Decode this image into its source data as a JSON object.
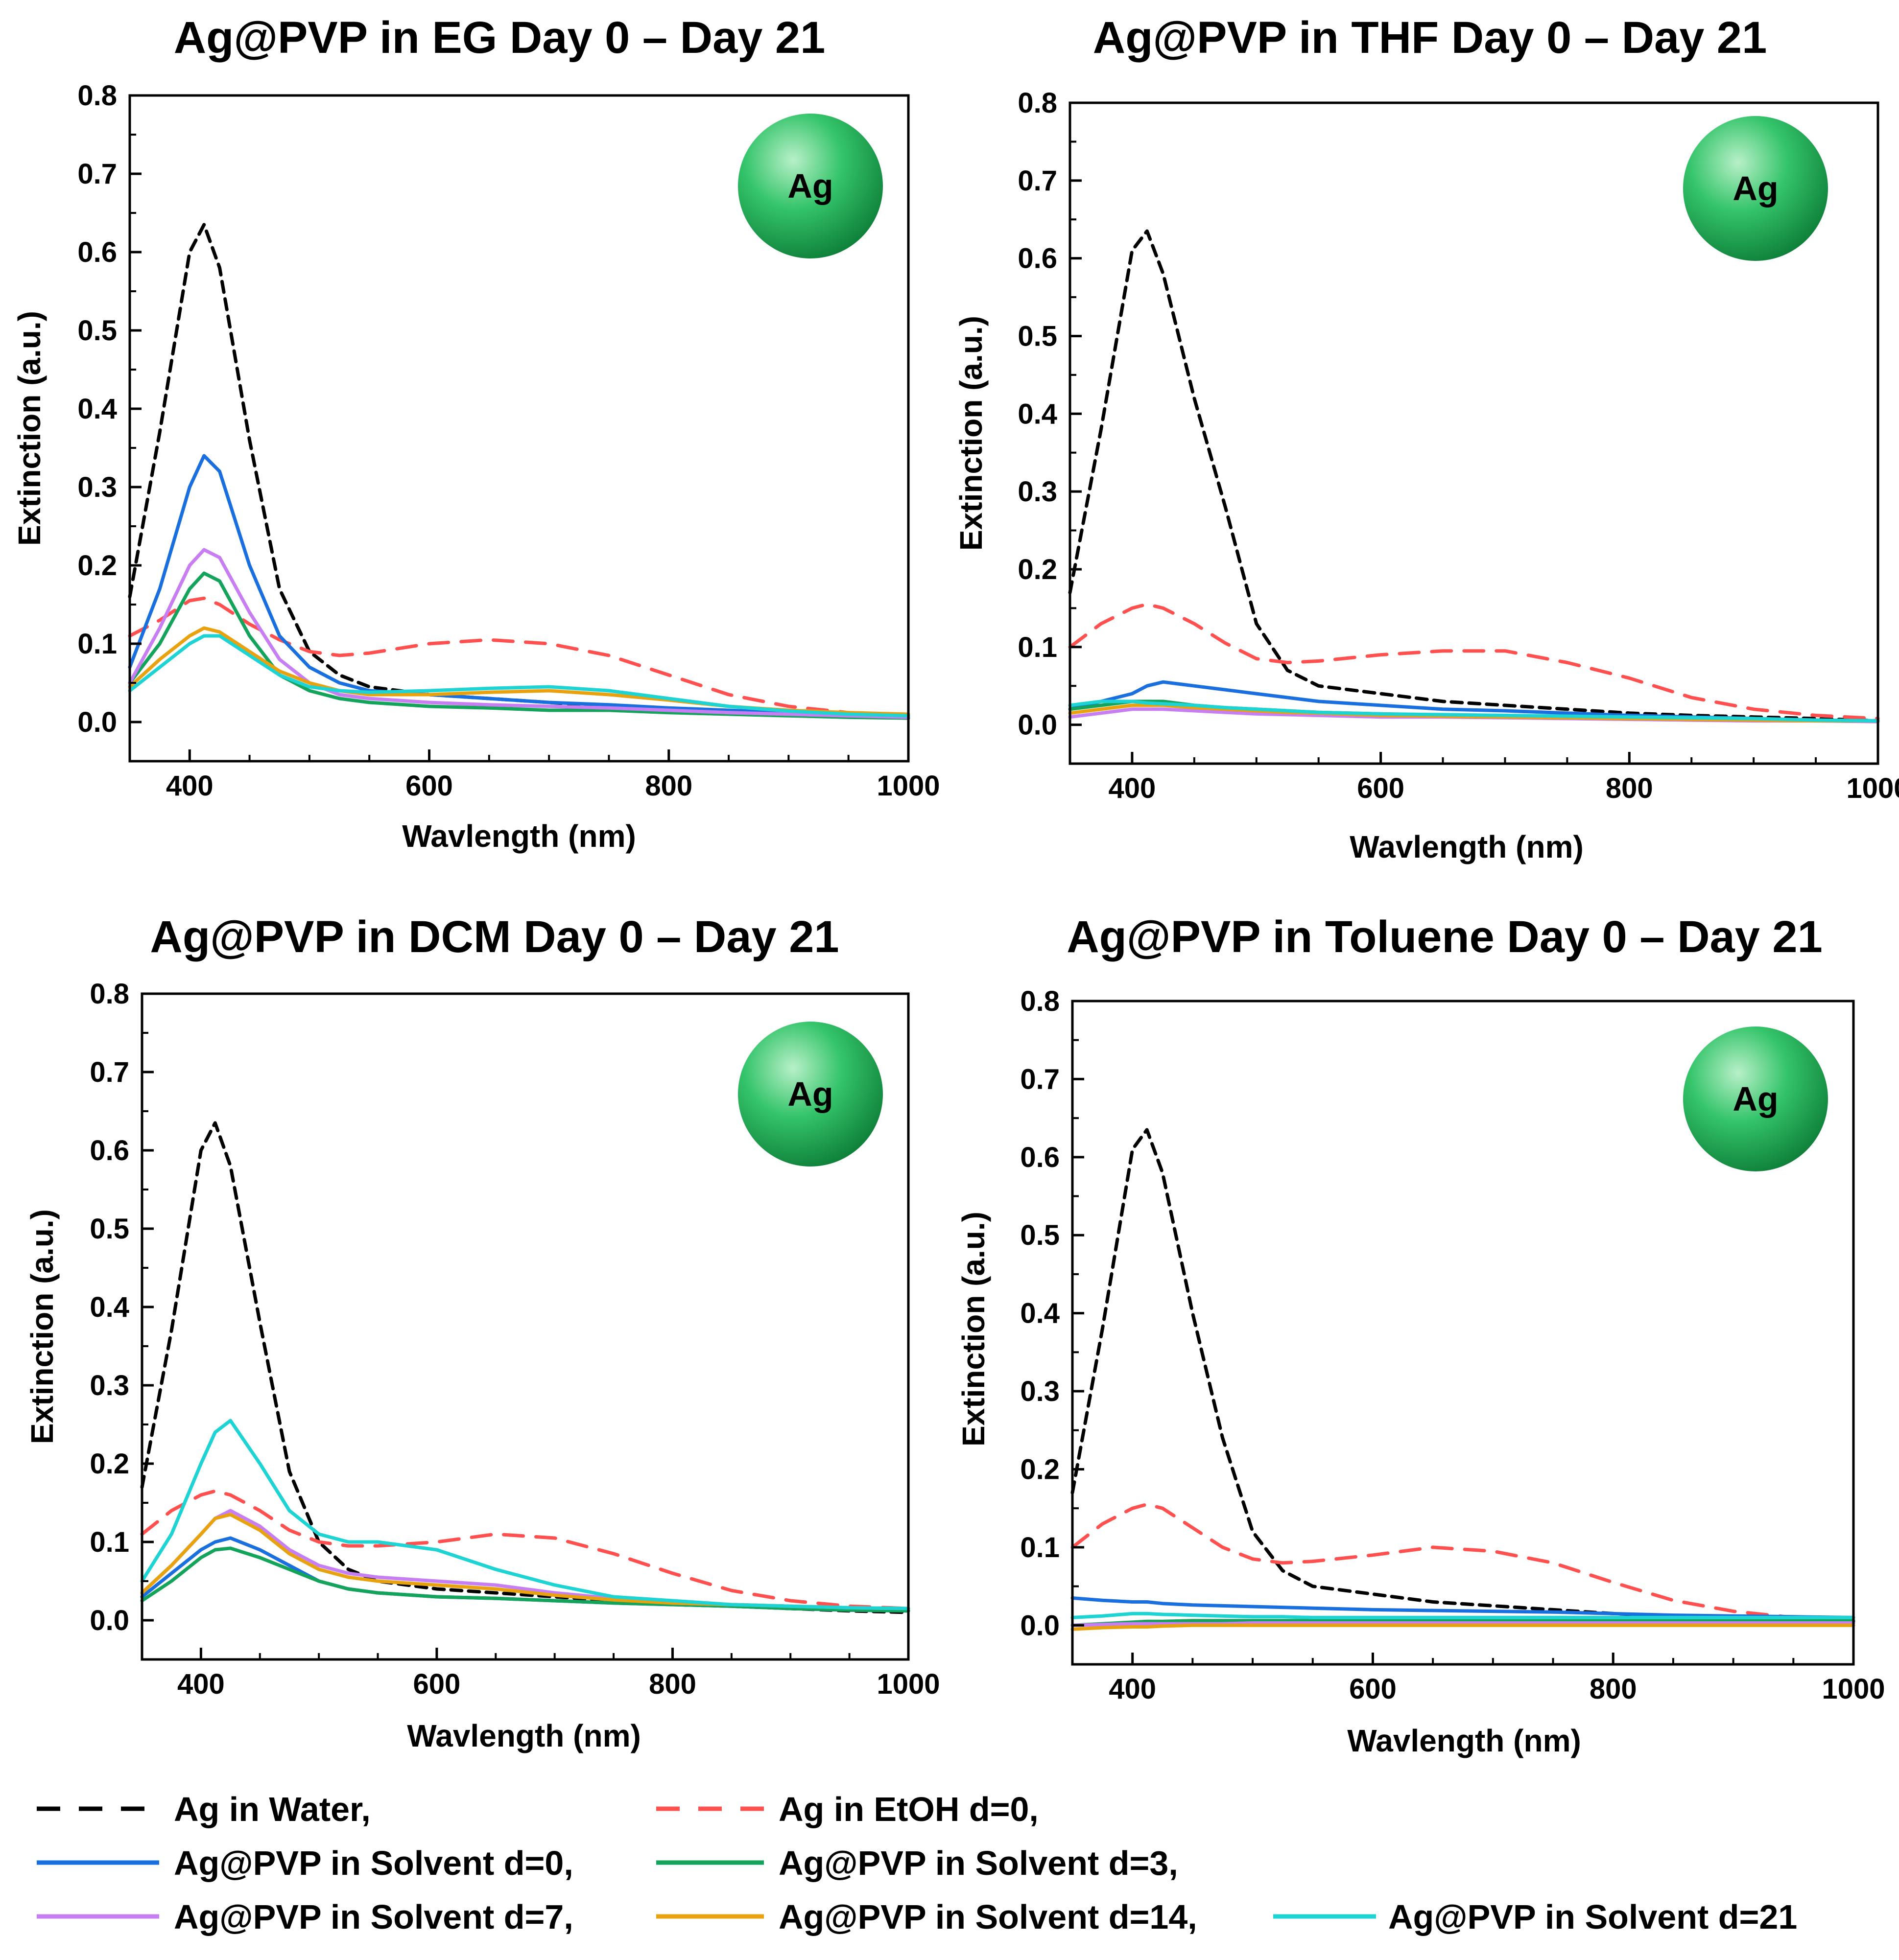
{
  "chart_data": [
    {
      "type": "line",
      "title": "Ag@PVP in EG Day 0 – Day 21",
      "xlabel": "Wavlength (nm)",
      "ylabel": "Extinction (a.u.)",
      "xlim": [
        350,
        1000
      ],
      "ylim": [
        -0.05,
        0.8
      ],
      "xticks": [
        400,
        600,
        800,
        1000
      ],
      "xtick_labels": [
        "400",
        "600",
        "800",
        "1000"
      ],
      "yticks": [
        0.0,
        0.1,
        0.2,
        0.3,
        0.4,
        0.5,
        0.6,
        0.7,
        0.8
      ],
      "ytick_labels": [
        "0.0",
        "0.1",
        "0.2",
        "0.3",
        "0.4",
        "0.5",
        "0.6",
        "0.7",
        "0.8"
      ],
      "badge": "Ag",
      "x": [
        350,
        375,
        400,
        412,
        425,
        450,
        475,
        500,
        525,
        550,
        600,
        650,
        700,
        750,
        800,
        850,
        900,
        950,
        1000
      ],
      "series": [
        {
          "name": "Ag in Water",
          "values": [
            0.16,
            0.37,
            0.6,
            0.635,
            0.58,
            0.36,
            0.17,
            0.09,
            0.06,
            0.045,
            0.035,
            0.03,
            0.025,
            0.02,
            0.015,
            0.012,
            0.01,
            0.008,
            0.005
          ]
        },
        {
          "name": "Ag in EtOH d=0",
          "values": [
            0.11,
            0.13,
            0.155,
            0.158,
            0.15,
            0.125,
            0.105,
            0.09,
            0.085,
            0.088,
            0.1,
            0.105,
            0.1,
            0.085,
            0.06,
            0.035,
            0.02,
            0.012,
            0.008
          ]
        },
        {
          "name": "Ag@PVP in Solvent d=0",
          "values": [
            0.07,
            0.17,
            0.3,
            0.34,
            0.32,
            0.2,
            0.11,
            0.07,
            0.05,
            0.04,
            0.035,
            0.03,
            0.025,
            0.022,
            0.018,
            0.015,
            0.012,
            0.01,
            0.008
          ]
        },
        {
          "name": "Ag@PVP in Solvent d=3",
          "values": [
            0.05,
            0.1,
            0.17,
            0.19,
            0.18,
            0.11,
            0.06,
            0.04,
            0.03,
            0.025,
            0.02,
            0.018,
            0.015,
            0.015,
            0.012,
            0.01,
            0.008,
            0.006,
            0.005
          ]
        },
        {
          "name": "Ag@PVP in Solvent d=7",
          "values": [
            0.05,
            0.12,
            0.2,
            0.22,
            0.21,
            0.14,
            0.08,
            0.05,
            0.035,
            0.03,
            0.025,
            0.022,
            0.02,
            0.018,
            0.015,
            0.012,
            0.01,
            0.008,
            0.006
          ]
        },
        {
          "name": "Ag@PVP in Solvent d=14",
          "values": [
            0.045,
            0.08,
            0.11,
            0.12,
            0.115,
            0.09,
            0.065,
            0.05,
            0.04,
            0.035,
            0.035,
            0.038,
            0.04,
            0.035,
            0.028,
            0.02,
            0.015,
            0.012,
            0.01
          ]
        },
        {
          "name": "Ag@PVP in Solvent d=21",
          "values": [
            0.04,
            0.07,
            0.1,
            0.11,
            0.11,
            0.085,
            0.06,
            0.045,
            0.04,
            0.038,
            0.04,
            0.043,
            0.045,
            0.04,
            0.03,
            0.02,
            0.014,
            0.01,
            0.008
          ]
        }
      ]
    },
    {
      "type": "line",
      "title": "Ag@PVP in THF Day 0 – Day 21",
      "xlabel": "Wavlength (nm)",
      "ylabel": "Extinction (a.u.)",
      "xlim": [
        350,
        1000
      ],
      "ylim": [
        -0.05,
        0.8
      ],
      "xticks": [
        400,
        600,
        800,
        1000
      ],
      "xtick_labels": [
        "400",
        "600",
        "800",
        "1000"
      ],
      "yticks": [
        0.0,
        0.1,
        0.2,
        0.3,
        0.4,
        0.5,
        0.6,
        0.7,
        0.8
      ],
      "ytick_labels": [
        "0.0",
        "0.1",
        "0.2",
        "0.3",
        "0.4",
        "0.5",
        "0.6",
        "0.7",
        "0.8"
      ],
      "badge": "Ag",
      "x": [
        350,
        375,
        400,
        412,
        425,
        450,
        475,
        500,
        525,
        550,
        600,
        650,
        700,
        750,
        800,
        850,
        900,
        950,
        1000
      ],
      "series": [
        {
          "name": "Ag in Water",
          "values": [
            0.17,
            0.38,
            0.61,
            0.635,
            0.58,
            0.42,
            0.28,
            0.13,
            0.07,
            0.05,
            0.04,
            0.03,
            0.025,
            0.02,
            0.015,
            0.012,
            0.01,
            0.008,
            0.005
          ]
        },
        {
          "name": "Ag in EtOH d=0",
          "values": [
            0.1,
            0.13,
            0.15,
            0.155,
            0.15,
            0.13,
            0.105,
            0.085,
            0.08,
            0.082,
            0.09,
            0.095,
            0.095,
            0.08,
            0.06,
            0.035,
            0.02,
            0.012,
            0.008
          ]
        },
        {
          "name": "Ag@PVP in Solvent d=0",
          "values": [
            0.02,
            0.03,
            0.04,
            0.05,
            0.055,
            0.05,
            0.045,
            0.04,
            0.035,
            0.03,
            0.025,
            0.02,
            0.018,
            0.015,
            0.012,
            0.01,
            0.008,
            0.006,
            0.005
          ]
        },
        {
          "name": "Ag@PVP in Solvent d=3",
          "values": [
            0.02,
            0.025,
            0.03,
            0.03,
            0.03,
            0.025,
            0.022,
            0.02,
            0.018,
            0.016,
            0.014,
            0.012,
            0.01,
            0.01,
            0.008,
            0.008,
            0.006,
            0.006,
            0.005
          ]
        },
        {
          "name": "Ag@PVP in Solvent d=7",
          "values": [
            0.01,
            0.015,
            0.02,
            0.02,
            0.02,
            0.018,
            0.016,
            0.014,
            0.013,
            0.012,
            0.01,
            0.01,
            0.009,
            0.008,
            0.007,
            0.006,
            0.005,
            0.005,
            0.004
          ]
        },
        {
          "name": "Ag@PVP in Solvent d=14",
          "values": [
            0.015,
            0.02,
            0.025,
            0.025,
            0.025,
            0.022,
            0.02,
            0.018,
            0.016,
            0.015,
            0.012,
            0.011,
            0.01,
            0.009,
            0.008,
            0.007,
            0.006,
            0.005,
            0.005
          ]
        },
        {
          "name": "Ag@PVP in Solvent d=21",
          "values": [
            0.025,
            0.03,
            0.03,
            0.028,
            0.027,
            0.025,
            0.022,
            0.02,
            0.018,
            0.016,
            0.014,
            0.013,
            0.012,
            0.011,
            0.01,
            0.009,
            0.008,
            0.006,
            0.005
          ]
        }
      ]
    },
    {
      "type": "line",
      "title": "Ag@PVP in DCM Day 0 – Day 21",
      "xlabel": "Wavlength (nm)",
      "ylabel": "Extinction (a.u.)",
      "xlim": [
        350,
        1000
      ],
      "ylim": [
        -0.05,
        0.8
      ],
      "xticks": [
        400,
        600,
        800,
        1000
      ],
      "xtick_labels": [
        "400",
        "600",
        "800",
        "1000"
      ],
      "yticks": [
        0.0,
        0.1,
        0.2,
        0.3,
        0.4,
        0.5,
        0.6,
        0.7,
        0.8
      ],
      "ytick_labels": [
        "0.0",
        "0.1",
        "0.2",
        "0.3",
        "0.4",
        "0.5",
        "0.6",
        "0.7",
        "0.8"
      ],
      "badge": "Ag",
      "x": [
        350,
        375,
        400,
        412,
        425,
        450,
        475,
        500,
        525,
        550,
        600,
        650,
        700,
        750,
        800,
        850,
        900,
        950,
        1000
      ],
      "series": [
        {
          "name": "Ag in Water",
          "values": [
            0.17,
            0.37,
            0.6,
            0.635,
            0.58,
            0.38,
            0.19,
            0.1,
            0.065,
            0.05,
            0.04,
            0.035,
            0.03,
            0.025,
            0.02,
            0.018,
            0.015,
            0.012,
            0.01
          ]
        },
        {
          "name": "Ag in EtOH d=0",
          "values": [
            0.11,
            0.14,
            0.16,
            0.165,
            0.16,
            0.14,
            0.115,
            0.1,
            0.095,
            0.095,
            0.1,
            0.11,
            0.105,
            0.085,
            0.06,
            0.038,
            0.025,
            0.018,
            0.015
          ]
        },
        {
          "name": "Ag@PVP in Solvent d=0",
          "values": [
            0.03,
            0.06,
            0.09,
            0.1,
            0.105,
            0.09,
            0.07,
            0.05,
            0.04,
            0.035,
            0.03,
            0.028,
            0.025,
            0.022,
            0.02,
            0.018,
            0.015,
            0.013,
            0.012
          ]
        },
        {
          "name": "Ag@PVP in Solvent d=3",
          "values": [
            0.025,
            0.05,
            0.08,
            0.09,
            0.092,
            0.08,
            0.065,
            0.05,
            0.04,
            0.035,
            0.03,
            0.028,
            0.025,
            0.022,
            0.02,
            0.018,
            0.015,
            0.013,
            0.012
          ]
        },
        {
          "name": "Ag@PVP in Solvent d=7",
          "values": [
            0.035,
            0.07,
            0.11,
            0.13,
            0.14,
            0.12,
            0.09,
            0.07,
            0.06,
            0.055,
            0.05,
            0.045,
            0.035,
            0.028,
            0.022,
            0.02,
            0.018,
            0.016,
            0.015
          ]
        },
        {
          "name": "Ag@PVP in Solvent d=14",
          "values": [
            0.035,
            0.07,
            0.11,
            0.13,
            0.135,
            0.115,
            0.085,
            0.065,
            0.055,
            0.05,
            0.045,
            0.04,
            0.032,
            0.026,
            0.022,
            0.02,
            0.018,
            0.016,
            0.015
          ]
        },
        {
          "name": "Ag@PVP in Solvent d=21",
          "values": [
            0.05,
            0.11,
            0.2,
            0.24,
            0.255,
            0.2,
            0.14,
            0.11,
            0.1,
            0.1,
            0.09,
            0.065,
            0.045,
            0.03,
            0.025,
            0.02,
            0.018,
            0.016,
            0.015
          ]
        }
      ]
    },
    {
      "type": "line",
      "title": "Ag@PVP in Toluene Day 0 – Day 21",
      "xlabel": "Wavlength (nm)",
      "ylabel": "Extinction (a.u.)",
      "xlim": [
        350,
        1000
      ],
      "ylim": [
        -0.05,
        0.8
      ],
      "xticks": [
        400,
        600,
        800,
        1000
      ],
      "xtick_labels": [
        "400",
        "600",
        "800",
        "1000"
      ],
      "yticks": [
        0.0,
        0.1,
        0.2,
        0.3,
        0.4,
        0.5,
        0.6,
        0.7,
        0.8
      ],
      "ytick_labels": [
        "0.0",
        "0.1",
        "0.2",
        "0.3",
        "0.4",
        "0.5",
        "0.6",
        "0.7",
        "0.8"
      ],
      "badge": "Ag",
      "x": [
        350,
        375,
        400,
        412,
        425,
        450,
        475,
        500,
        525,
        550,
        600,
        650,
        700,
        750,
        800,
        850,
        900,
        950,
        1000
      ],
      "series": [
        {
          "name": "Ag in Water",
          "values": [
            0.17,
            0.38,
            0.61,
            0.635,
            0.58,
            0.4,
            0.24,
            0.12,
            0.07,
            0.05,
            0.04,
            0.03,
            0.025,
            0.02,
            0.015,
            0.012,
            0.01,
            0.008,
            0.005
          ]
        },
        {
          "name": "Ag in EtOH d=0",
          "values": [
            0.1,
            0.13,
            0.15,
            0.155,
            0.15,
            0.125,
            0.1,
            0.085,
            0.08,
            0.082,
            0.09,
            0.1,
            0.095,
            0.08,
            0.055,
            0.032,
            0.018,
            0.01,
            0.006
          ]
        },
        {
          "name": "Ag@PVP in Solvent d=0",
          "values": [
            0.035,
            0.032,
            0.03,
            0.03,
            0.028,
            0.026,
            0.025,
            0.024,
            0.023,
            0.022,
            0.02,
            0.019,
            0.018,
            0.017,
            0.015,
            0.013,
            0.012,
            0.011,
            0.01
          ]
        },
        {
          "name": "Ag@PVP in Solvent d=3",
          "values": [
            0.0,
            0.002,
            0.004,
            0.005,
            0.005,
            0.006,
            0.006,
            0.006,
            0.006,
            0.006,
            0.006,
            0.006,
            0.006,
            0.006,
            0.006,
            0.006,
            0.006,
            0.006,
            0.006
          ]
        },
        {
          "name": "Ag@PVP in Solvent d=7",
          "values": [
            0.0,
            0.001,
            0.002,
            0.002,
            0.002,
            0.002,
            0.002,
            0.003,
            0.003,
            0.003,
            0.003,
            0.003,
            0.003,
            0.003,
            0.003,
            0.003,
            0.003,
            0.003,
            0.003
          ]
        },
        {
          "name": "Ag@PVP in Solvent d=14",
          "values": [
            -0.005,
            -0.003,
            -0.002,
            -0.002,
            -0.001,
            0.0,
            0.0,
            0.0,
            0.0,
            0.0,
            0.0,
            0.0,
            0.0,
            0.0,
            0.0,
            0.0,
            0.0,
            0.0,
            0.0
          ]
        },
        {
          "name": "Ag@PVP in Solvent d=21",
          "values": [
            0.01,
            0.012,
            0.015,
            0.015,
            0.014,
            0.013,
            0.012,
            0.011,
            0.011,
            0.01,
            0.01,
            0.01,
            0.01,
            0.01,
            0.01,
            0.01,
            0.01,
            0.01,
            0.01
          ]
        }
      ]
    }
  ],
  "legend": {
    "entries": [
      {
        "label": "Ag in Water,",
        "color": "#000000",
        "dash": true
      },
      {
        "label": "Ag in EtOH d=0,",
        "color": "#ff5050",
        "dash": true
      },
      {
        "label": "Ag@PVP in Solvent d=0,",
        "color": "#1a6fdf",
        "dash": false
      },
      {
        "label": "Ag@PVP in Solvent d=3,",
        "color": "#13a35a",
        "dash": false
      },
      {
        "label": "Ag@PVP in Solvent d=7,",
        "color": "#c77ef2",
        "dash": false
      },
      {
        "label": "Ag@PVP in Solvent d=14,",
        "color": "#e8a20f",
        "dash": false
      },
      {
        "label": "Ag@PVP in Solvent d=21",
        "color": "#1ed3d3",
        "dash": false
      }
    ]
  },
  "colors": {
    "Ag in Water": "#000000",
    "Ag in EtOH d=0": "#ff5050",
    "Ag@PVP in Solvent d=0": "#1a6fdf",
    "Ag@PVP in Solvent d=3": "#13a35a",
    "Ag@PVP in Solvent d=7": "#c77ef2",
    "Ag@PVP in Solvent d=14": "#e8a20f",
    "Ag@PVP in Solvent d=21": "#1ed3d3"
  }
}
